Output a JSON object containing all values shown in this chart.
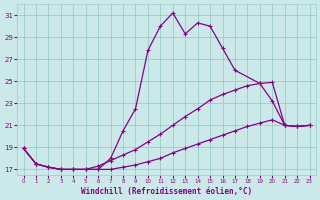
{
  "xlabel": "Windchill (Refroidissement éolien,°C)",
  "xlim": [
    -0.5,
    23.5
  ],
  "ylim": [
    16.5,
    32
  ],
  "yticks": [
    17,
    19,
    21,
    23,
    25,
    27,
    29,
    31
  ],
  "xticks": [
    0,
    1,
    2,
    3,
    4,
    5,
    6,
    7,
    8,
    9,
    10,
    11,
    12,
    13,
    14,
    15,
    16,
    17,
    18,
    19,
    20,
    21,
    22,
    23
  ],
  "background_color": "#cce9e9",
  "grid_color": "#99cccc",
  "line_color": "#880088",
  "line1_x": [
    0,
    1,
    2,
    3,
    4,
    5,
    6,
    7,
    8,
    9,
    10,
    11,
    12,
    13,
    14,
    15,
    16,
    17,
    19,
    20,
    21,
    22,
    23
  ],
  "line1_y": [
    18.9,
    17.5,
    17.2,
    17.0,
    17.0,
    17.0,
    17.0,
    18.0,
    20.5,
    22.5,
    27.8,
    30.0,
    31.2,
    29.3,
    30.3,
    30.0,
    28.0,
    26.0,
    24.8,
    23.2,
    21.0,
    20.9,
    21.0
  ],
  "line2_x": [
    0,
    1,
    2,
    3,
    4,
    5,
    6,
    7,
    8,
    9,
    10,
    11,
    12,
    13,
    14,
    15,
    16,
    17,
    18,
    19,
    20,
    21,
    22,
    23
  ],
  "line2_y": [
    18.9,
    17.5,
    17.2,
    17.0,
    17.0,
    17.0,
    17.3,
    17.8,
    18.3,
    18.8,
    19.5,
    20.2,
    21.0,
    21.8,
    22.5,
    23.3,
    23.8,
    24.2,
    24.6,
    24.8,
    24.9,
    21.0,
    20.9,
    21.0
  ],
  "line3_x": [
    0,
    1,
    2,
    3,
    4,
    5,
    6,
    7,
    8,
    9,
    10,
    11,
    12,
    13,
    14,
    15,
    16,
    17,
    18,
    19,
    20,
    21,
    22,
    23
  ],
  "line3_y": [
    18.9,
    17.5,
    17.2,
    17.0,
    17.0,
    17.0,
    17.0,
    17.0,
    17.2,
    17.4,
    17.7,
    18.0,
    18.5,
    18.9,
    19.3,
    19.7,
    20.1,
    20.5,
    20.9,
    21.2,
    21.5,
    21.0,
    20.9,
    21.0
  ]
}
